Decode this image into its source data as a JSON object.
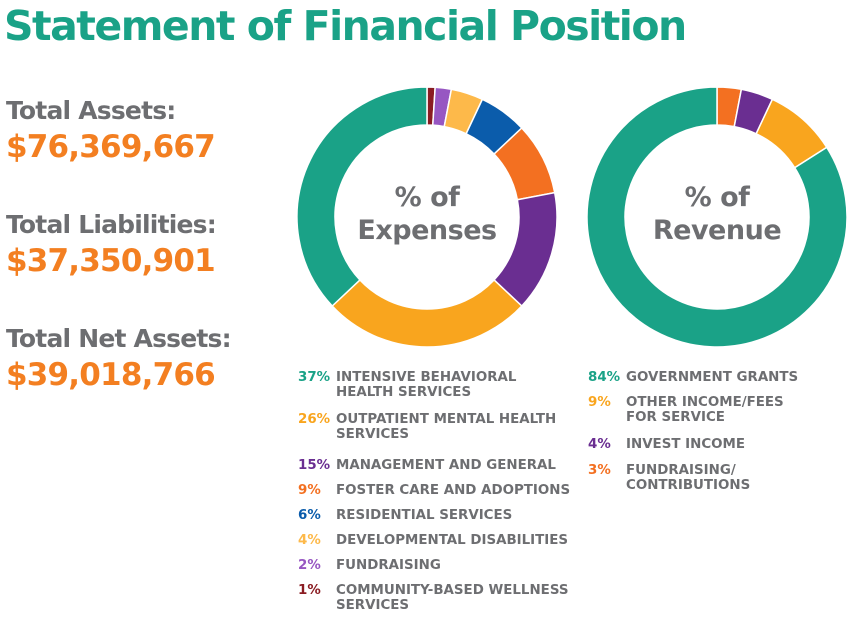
{
  "title": "Statement of Financial Position",
  "stats": [
    {
      "label": "Total Assets:",
      "value": "$76,369,667"
    },
    {
      "label": "Total Liabilities:",
      "value": "$37,350,901"
    },
    {
      "label": "Total Net Assets:",
      "value": "$39,018,766"
    }
  ],
  "chart_data": [
    {
      "type": "pie",
      "title": "% of Expenses",
      "title_lines": [
        "% of",
        "Expenses"
      ],
      "categories": [
        "INTENSIVE BEHAVIORAL HEALTH SERVICES",
        "OUTPATIENT MENTAL HEALTH SERVICES",
        "MANAGEMENT AND GENERAL",
        "FOSTER CARE AND ADOPTIONS",
        "RESIDENTIAL SERVICES",
        "DEVELOPMENTAL DISABILITIES",
        "FUNDRAISING",
        "COMMUNITY-BASED WELLNESS SERVICES"
      ],
      "values": [
        37,
        26,
        15,
        9,
        6,
        4,
        2,
        1
      ],
      "labels": [
        "37%",
        "26%",
        "15%",
        "9%",
        "6%",
        "4%",
        "2%",
        "1%"
      ],
      "colors": [
        "#1aa287",
        "#f9a51e",
        "#6a2e91",
        "#f37021",
        "#0b5cab",
        "#fdb94a",
        "#9757c2",
        "#8a1c22"
      ],
      "start_angle_deg": 0,
      "legend_position": "bottom"
    },
    {
      "type": "pie",
      "title": "% of Revenue",
      "title_lines": [
        "% of",
        "Revenue"
      ],
      "categories": [
        "GOVERNMENT GRANTS",
        "OTHER INCOME/FEES FOR SERVICE",
        "INVEST INCOME",
        "FUNDRAISING/ CONTRIBUTIONS"
      ],
      "values": [
        84,
        9,
        4,
        3
      ],
      "labels": [
        "84%",
        "9%",
        "4%",
        "3%"
      ],
      "colors": [
        "#1aa287",
        "#f9a51e",
        "#6a2e91",
        "#f37021"
      ],
      "start_angle_deg": 0,
      "legend_position": "bottom"
    }
  ]
}
